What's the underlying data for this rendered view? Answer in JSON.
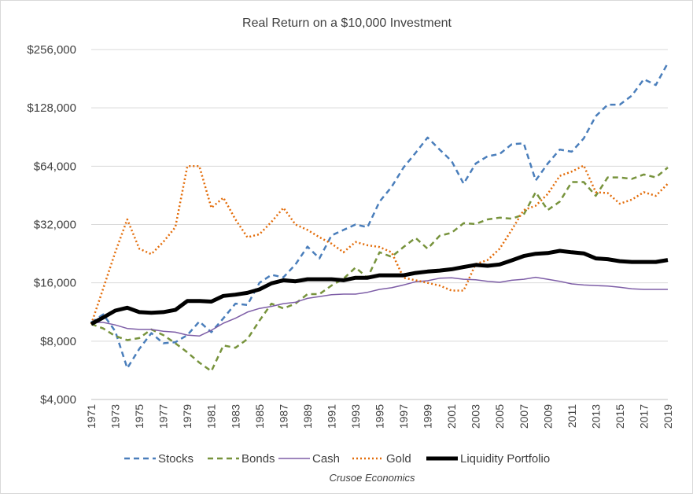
{
  "chart_data": {
    "type": "line",
    "title": "Real Return on a $10,000 Investment",
    "footer": "Crusoe Economics",
    "xlabel": "",
    "ylabel": "",
    "y_scale": "log2",
    "ylim": [
      4000,
      256000
    ],
    "y_ticks": [
      4000,
      8000,
      16000,
      32000,
      64000,
      128000,
      256000
    ],
    "y_tick_labels": [
      "$4,000",
      "$8,000",
      "$16,000",
      "$32,000",
      "$64,000",
      "$128,000",
      "$256,000"
    ],
    "xlim": [
      1971,
      2019
    ],
    "x_tick_labels": [
      "1971",
      "1973",
      "1975",
      "1977",
      "1979",
      "1981",
      "1983",
      "1985",
      "1987",
      "1989",
      "1991",
      "1993",
      "1995",
      "1997",
      "1999",
      "2001",
      "2003",
      "2005",
      "2007",
      "2009",
      "2011",
      "2013",
      "2015",
      "2017",
      "2019"
    ],
    "grid": true,
    "legend_position": "bottom",
    "x": [
      1971,
      1972,
      1973,
      1974,
      1975,
      1976,
      1977,
      1978,
      1979,
      1980,
      1981,
      1982,
      1983,
      1984,
      1985,
      1986,
      1987,
      1988,
      1989,
      1990,
      1991,
      1992,
      1993,
      1994,
      1995,
      1996,
      1997,
      1998,
      1999,
      2000,
      2001,
      2002,
      2003,
      2004,
      2005,
      2006,
      2007,
      2008,
      2009,
      2010,
      2011,
      2012,
      2013,
      2014,
      2015,
      2016,
      2017,
      2018,
      2019
    ],
    "series": [
      {
        "name": "Stocks",
        "color": "#4a7ebb",
        "dash": "dashed",
        "values": [
          10000,
          11000,
          9000,
          5800,
          7300,
          8800,
          7800,
          7900,
          8600,
          10100,
          8900,
          10500,
          12500,
          12300,
          16000,
          17600,
          17100,
          19900,
          24600,
          21400,
          28100,
          30000,
          32000,
          31000,
          42000,
          50000,
          63000,
          75000,
          90000,
          78000,
          68000,
          52000,
          66000,
          72000,
          74000,
          83000,
          84000,
          54000,
          66000,
          78000,
          76000,
          89000,
          116000,
          133000,
          133000,
          148000,
          180000,
          168000,
          218000
        ]
      },
      {
        "name": "Bonds",
        "color": "#77933c",
        "dash": "dashed",
        "values": [
          9800,
          9300,
          8500,
          8100,
          8300,
          9200,
          8600,
          7800,
          7000,
          6200,
          5600,
          7600,
          7400,
          8200,
          10200,
          12500,
          11800,
          12500,
          14000,
          14000,
          15500,
          16800,
          19200,
          17000,
          23000,
          21800,
          24500,
          27300,
          24000,
          28000,
          29000,
          32500,
          32200,
          34000,
          34700,
          34300,
          36000,
          47000,
          38000,
          42000,
          53000,
          53000,
          45000,
          56000,
          56000,
          55000,
          58000,
          56000,
          63000
        ]
      },
      {
        "name": "Cash",
        "color": "#7e5ea7",
        "dash": "solid",
        "values": [
          10000,
          10000,
          9700,
          9300,
          9200,
          9200,
          9000,
          8900,
          8600,
          8500,
          9100,
          9900,
          10500,
          11300,
          11800,
          12100,
          12500,
          12700,
          13300,
          13600,
          13900,
          14000,
          14000,
          14300,
          14800,
          15100,
          15600,
          16200,
          16400,
          16900,
          17000,
          16700,
          16600,
          16300,
          16100,
          16500,
          16700,
          17100,
          16700,
          16300,
          15800,
          15600,
          15500,
          15400,
          15200,
          14900,
          14800,
          14800,
          14800
        ]
      },
      {
        "name": "Gold",
        "color": "#e36c09",
        "dash": "dotted",
        "values": [
          9800,
          15000,
          23000,
          34000,
          24000,
          22500,
          26000,
          31000,
          64000,
          64000,
          39000,
          44000,
          34000,
          27500,
          28500,
          33000,
          39000,
          32000,
          30000,
          27500,
          25500,
          23000,
          26000,
          25000,
          24500,
          23000,
          17000,
          16500,
          16000,
          15500,
          14600,
          14600,
          20000,
          21000,
          24000,
          30000,
          38000,
          40000,
          46000,
          57000,
          60000,
          64500,
          47000,
          46500,
          41000,
          43000,
          47000,
          45000,
          52000
        ]
      },
      {
        "name": "Liquidity Portfolio",
        "color": "#000000",
        "dash": "solid",
        "bold": true,
        "values": [
          9800,
          10600,
          11500,
          11900,
          11300,
          11200,
          11300,
          11600,
          12900,
          12900,
          12800,
          13700,
          13900,
          14200,
          14800,
          15900,
          16500,
          16300,
          16700,
          16700,
          16700,
          16500,
          17000,
          17000,
          17500,
          17500,
          17500,
          18000,
          18300,
          18500,
          18800,
          19300,
          19800,
          19600,
          19900,
          20900,
          22000,
          22600,
          22800,
          23400,
          23000,
          22700,
          21400,
          21200,
          20700,
          20500,
          20500,
          20500,
          21000
        ]
      }
    ]
  }
}
